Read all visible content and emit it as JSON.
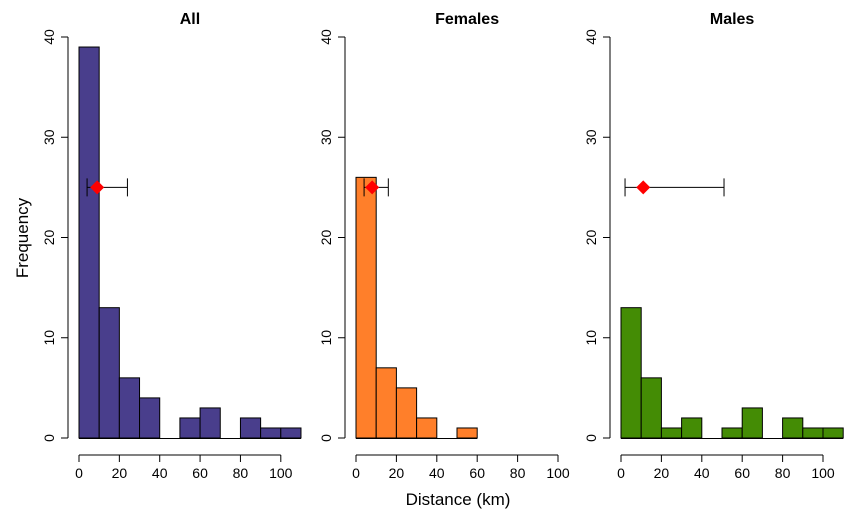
{
  "figure": {
    "ylabel": "Frequency",
    "xlabel": "Distance (km)"
  },
  "chart_data": [
    {
      "type": "bar",
      "title": "All",
      "color": "#493e8c",
      "bin_width": 10,
      "bin_starts": [
        0,
        10,
        20,
        30,
        40,
        50,
        60,
        70,
        80,
        90,
        100
      ],
      "values": [
        39,
        13,
        6,
        4,
        0,
        2,
        3,
        0,
        2,
        1,
        1
      ],
      "xlim": [
        0,
        110
      ],
      "ylim": [
        0,
        40
      ],
      "xticks": [
        "0",
        "20",
        "40",
        "60",
        "80",
        "100"
      ],
      "yticks": [
        "0",
        "10",
        "20",
        "30",
        "40"
      ],
      "point_estimate": {
        "x": 9,
        "y": 25,
        "lower": 4,
        "upper": 24,
        "color": "#ff0000"
      }
    },
    {
      "type": "bar",
      "title": "Females",
      "color": "#ff7f2a",
      "bin_width": 10,
      "bin_starts": [
        0,
        10,
        20,
        30,
        40,
        50
      ],
      "values": [
        26,
        7,
        5,
        2,
        0,
        1
      ],
      "xlim": [
        0,
        100
      ],
      "ylim": [
        0,
        40
      ],
      "xticks": [
        "0",
        "20",
        "40",
        "60",
        "80",
        "100"
      ],
      "yticks": [
        "0",
        "10",
        "20",
        "30",
        "40"
      ],
      "point_estimate": {
        "x": 8,
        "y": 25,
        "lower": 4,
        "upper": 16,
        "color": "#ff0000"
      }
    },
    {
      "type": "bar",
      "title": "Males",
      "color": "#448c05",
      "bin_width": 10,
      "bin_starts": [
        0,
        10,
        20,
        30,
        40,
        50,
        60,
        70,
        80,
        90,
        100
      ],
      "values": [
        13,
        6,
        1,
        2,
        0,
        1,
        3,
        0,
        2,
        1,
        1
      ],
      "xlim": [
        0,
        110
      ],
      "ylim": [
        0,
        40
      ],
      "xticks": [
        "0",
        "20",
        "40",
        "60",
        "80",
        "100"
      ],
      "yticks": [
        "0",
        "10",
        "20",
        "30",
        "40"
      ],
      "point_estimate": {
        "x": 11,
        "y": 25,
        "lower": 2,
        "upper": 51,
        "color": "#ff0000"
      }
    }
  ]
}
